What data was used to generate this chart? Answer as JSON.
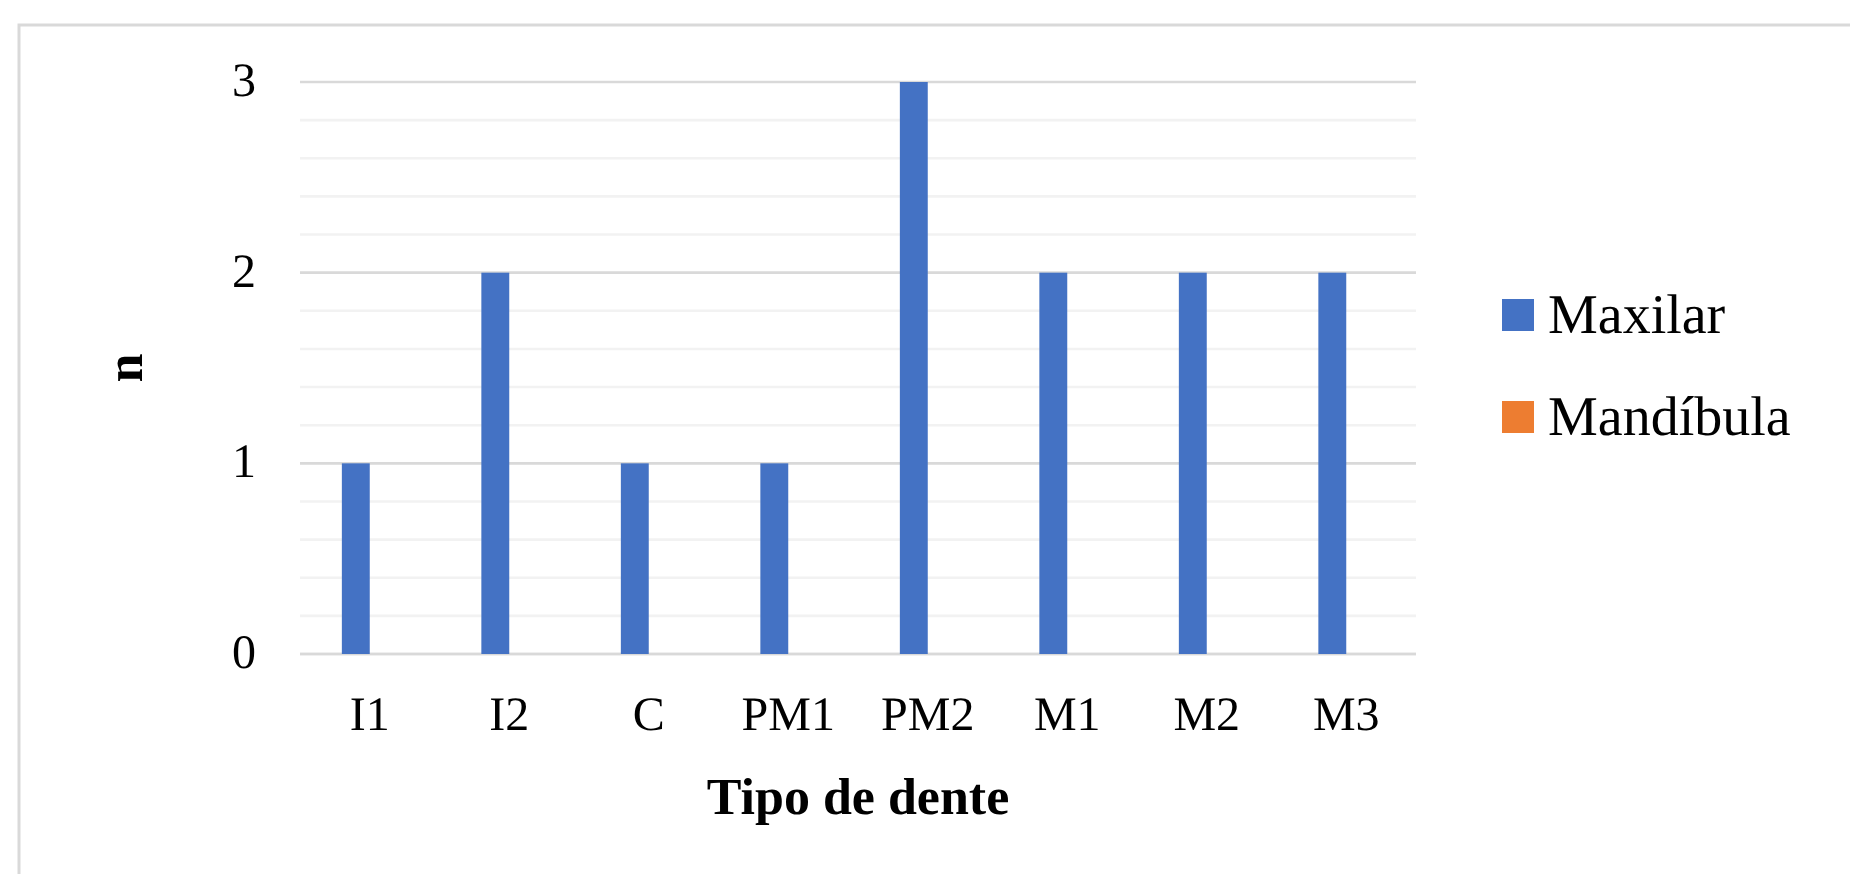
{
  "chart_data": {
    "type": "bar",
    "xlabel": "Tipo de dente",
    "ylabel": "n",
    "categories": [
      "I1",
      "I2",
      "C",
      "PM1",
      "PM2",
      "M1",
      "M2",
      "M3"
    ],
    "series": [
      {
        "name": "Maxilar",
        "color": "#4472c4",
        "values": [
          1,
          2,
          1,
          1,
          3,
          2,
          2,
          2
        ]
      },
      {
        "name": "Mandíbula",
        "color": "#ed7d31",
        "values": [
          null,
          null,
          null,
          null,
          null,
          null,
          null,
          null
        ]
      }
    ],
    "ylim": [
      0,
      3
    ],
    "yticks": [
      0,
      {
        "value": 0.2,
        "label": null
      },
      {
        "value": 0.4,
        "label": null
      },
      {
        "value": 0.6,
        "label": null
      },
      {
        "value": 0.8,
        "label": null
      },
      1,
      {
        "value": 1.2,
        "label": null
      },
      {
        "value": 1.4,
        "label": null
      },
      {
        "value": 1.6,
        "label": null
      },
      {
        "value": 1.8,
        "label": null
      },
      2,
      {
        "value": 2.2,
        "label": null
      },
      {
        "value": 2.4,
        "label": null
      },
      {
        "value": 2.6,
        "label": null
      },
      {
        "value": 2.8,
        "label": null
      },
      3
    ],
    "grid": "y",
    "legend": "right"
  }
}
